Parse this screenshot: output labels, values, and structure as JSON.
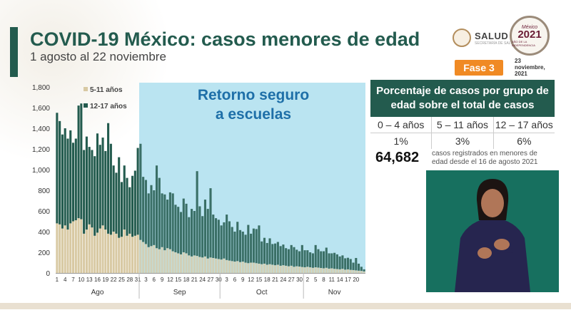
{
  "header": {
    "title": "COVID-19 México: casos menores de edad",
    "subtitle": "1 agosto al 22 noviembre"
  },
  "logos": {
    "salud_word": "SALUD",
    "salud_sub": "SECRETARÍA DE SALUD",
    "badge_top": "México",
    "badge_year": "2021",
    "badge_sub": "AÑO DE LA INDEPENDENCIA",
    "date_text": "23 noviembre, 2021"
  },
  "phase_badge": "Fase 3",
  "summary_table": {
    "header": "Porcentaje de casos por grupo de edad sobre el total de casos",
    "groups": [
      "0 – 4 años",
      "5 – 11 años",
      "12 – 17 años"
    ],
    "percents": [
      "1%",
      "3%",
      "6%"
    ]
  },
  "total_cases": "64,682",
  "total_note": "casos registrados en menores de edad desde el 16 de agosto 2021",
  "colors": {
    "dark_green": "#235b4e",
    "bar_5_11": "#d8c9a3",
    "bar_12_17": "#235b4e",
    "highlight": "#b3e1f0",
    "orange": "#f08a24",
    "video_bg": "#17705f"
  },
  "icons": [
    "salud-seal-icon",
    "mexico-2021-badge-icon"
  ],
  "chart_data": {
    "type": "bar",
    "stacked": true,
    "annotation": "Retorno seguro a escuelas",
    "ylim": [
      0,
      1800
    ],
    "yticks": [
      "1,800",
      "1,600",
      "1,400",
      "1,200",
      "1,000",
      "800",
      "600",
      "400",
      "200",
      "0"
    ],
    "grid": false,
    "legend": "top-left",
    "x_tick_labels": [
      "1",
      "4",
      "7",
      "10",
      "13",
      "16",
      "19",
      "22",
      "25",
      "28",
      "31",
      "3",
      "6",
      "9",
      "12",
      "15",
      "18",
      "21",
      "24",
      "27",
      "30",
      "3",
      "6",
      "9",
      "12",
      "15",
      "18",
      "21",
      "24",
      "27",
      "30",
      "2",
      "5",
      "8",
      "11",
      "14",
      "17",
      "20"
    ],
    "months": [
      "Ago",
      "Sep",
      "Oct",
      "Nov"
    ],
    "series": [
      {
        "name": "5-11 años",
        "values": [
          480,
          470,
          430,
          460,
          420,
          480,
          500,
          510,
          530,
          520,
          380,
          420,
          470,
          440,
          360,
          390,
          430,
          460,
          420,
          380,
          370,
          400,
          380,
          340,
          350,
          420,
          360,
          380,
          350,
          360,
          370,
          320,
          300,
          280,
          250,
          260,
          270,
          240,
          230,
          250,
          220,
          240,
          230,
          210,
          200,
          190,
          180,
          200,
          190,
          170,
          160,
          170,
          165,
          155,
          150,
          160,
          140,
          150,
          145,
          140,
          135,
          130,
          140,
          125,
          120,
          115,
          110,
          115,
          105,
          110,
          100,
          95,
          100,
          100,
          95,
          90,
          85,
          90,
          80,
          85,
          80,
          75,
          80,
          70,
          75,
          70,
          65,
          70,
          60,
          65,
          62,
          58,
          55,
          60,
          55,
          50,
          55,
          52,
          48,
          45,
          50,
          42,
          45,
          40,
          38,
          35,
          40,
          32,
          35,
          30,
          28,
          25,
          22,
          20,
          15
        ],
        "color": "#d8c9a3"
      },
      {
        "name": "12-17 años",
        "values": [
          1070,
          1000,
          910,
          940,
          880,
          900,
          760,
          790,
          1090,
          1120,
          810,
          900,
          750,
          750,
          770,
          960,
          810,
          850,
          760,
          1070,
          880,
          640,
          590,
          780,
          530,
          620,
          560,
          450,
          590,
          630,
          840,
          930,
          630,
          620,
          520,
          590,
          530,
          800,
          690,
          520,
          540,
          470,
          550,
          560,
          460,
          450,
          410,
          520,
          480,
          370,
          460,
          430,
          820,
          490,
          400,
          550,
          480,
          670,
          420,
          390,
          380,
          330,
          350,
          440,
          380,
          330,
          290,
          380,
          310,
          290,
          270,
          370,
          280,
          330,
          330,
          370,
          220,
          250,
          210,
          250,
          200,
          210,
          220,
          190,
          200,
          170,
          165,
          200,
          190,
          160,
          148,
          212,
          165,
          160,
          145,
          140,
          215,
          178,
          162,
          165,
          195,
          148,
          145,
          155,
          142,
          125,
          130,
          110,
          112,
          105,
          72,
          120,
          68,
          40,
          20
        ],
        "color": "#235b4e"
      }
    ]
  }
}
